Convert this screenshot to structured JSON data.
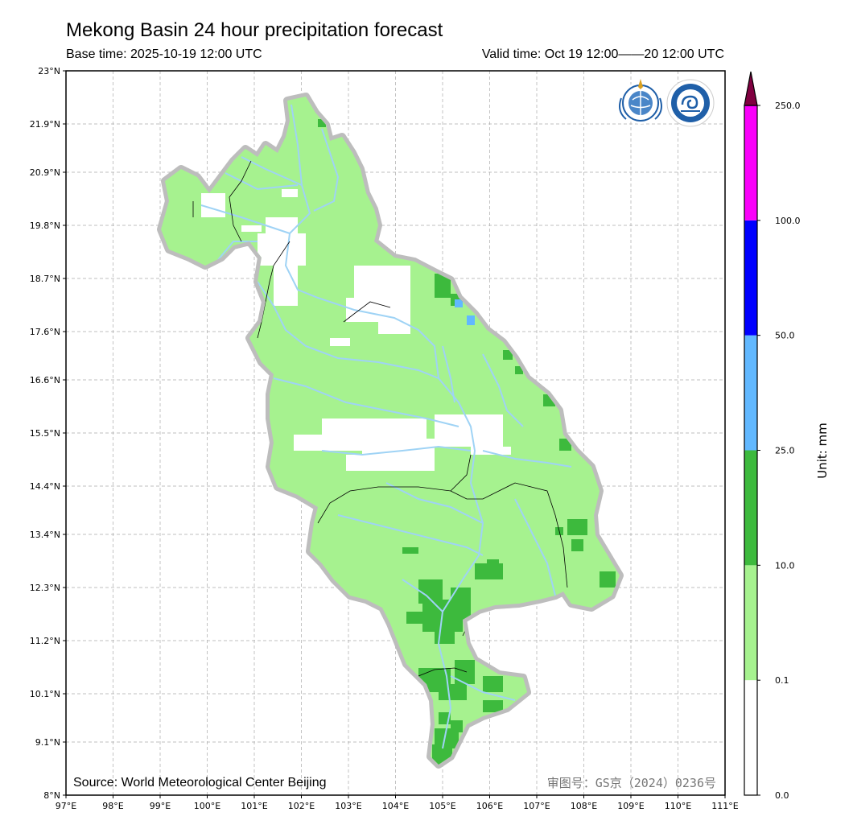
{
  "header": {
    "title": "Mekong Basin 24 hour precipitation forecast",
    "base_time": "Base time: 2025-10-19 12:00 UTC",
    "valid_time": "Valid time: Oct 19 12:00——20 12:00 UTC"
  },
  "map": {
    "lon_range": [
      97,
      111
    ],
    "lat_range": [
      8,
      23
    ],
    "lon_ticks": [
      "97°E",
      "98°E",
      "99°E",
      "100°E",
      "101°E",
      "102°E",
      "103°E",
      "104°E",
      "105°E",
      "106°E",
      "107°E",
      "108°E",
      "109°E",
      "110°E",
      "111°E"
    ],
    "lat_ticks": [
      {
        "value": 23.0,
        "label": "23°N"
      },
      {
        "value": 21.9,
        "label": "21.9°N"
      },
      {
        "value": 20.9,
        "label": "20.9°N"
      },
      {
        "value": 19.8,
        "label": "19.8°N"
      },
      {
        "value": 18.7,
        "label": "18.7°N"
      },
      {
        "value": 17.6,
        "label": "17.6°N"
      },
      {
        "value": 16.6,
        "label": "16.6°N"
      },
      {
        "value": 15.5,
        "label": "15.5°N"
      },
      {
        "value": 14.4,
        "label": "14.4°N"
      },
      {
        "value": 13.4,
        "label": "13.4°N"
      },
      {
        "value": 12.3,
        "label": "12.3°N"
      },
      {
        "value": 11.2,
        "label": "11.2°N"
      },
      {
        "value": 10.1,
        "label": "10.1°N"
      },
      {
        "value": 9.1,
        "label": "9.1°N"
      },
      {
        "value": 8.0,
        "label": "8°N"
      }
    ],
    "source": "Source: World Meteorological Center Beijing",
    "review_number": "审图号：GS京（2024）0236号",
    "basin_color": "#a6f28f",
    "outline_color": "#bdbdbd",
    "river_color": "#9fd3f5",
    "logos": [
      "wmo-logo",
      "cma-logo"
    ]
  },
  "colorbar": {
    "unit_label": "Unit: mm",
    "levels": [
      "0.0",
      "0.1",
      "10.0",
      "25.0",
      "50.0",
      "100.0",
      "250.0"
    ],
    "colors": [
      "#ffffff",
      "#a6f28f",
      "#3dba3d",
      "#61b8ff",
      "#0000ff",
      "#fa00fa",
      "#800040"
    ]
  }
}
